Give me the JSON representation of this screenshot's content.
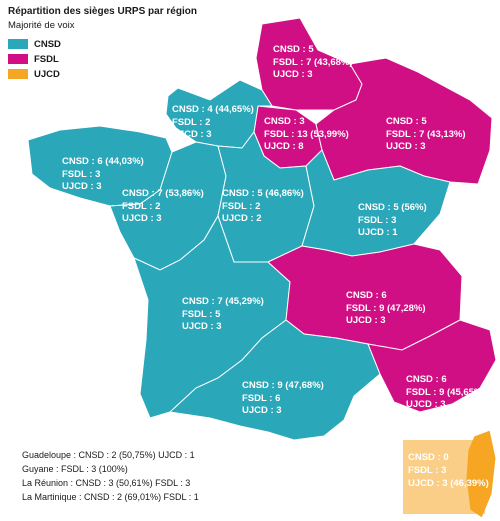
{
  "legend": {
    "title": "Répartition des sièges URPS par région",
    "subtitle": "Majorité de voix",
    "items": [
      {
        "label": "CNSD",
        "color": "#2aa7b8"
      },
      {
        "label": "FSDL",
        "color": "#d10f85"
      },
      {
        "label": "UJCD",
        "color": "#f5a623"
      }
    ]
  },
  "regions": [
    {
      "key": "hauts_de_france",
      "majority": "FSDL",
      "lines": [
        "CNSD : 5",
        "FSDL : 7 (43,68%)",
        "UJCD : 3"
      ]
    },
    {
      "key": "normandie",
      "majority": "CNSD",
      "lines": [
        "CNSD : 4 (44,65%)",
        "FSDL : 2",
        "UJCD : 3"
      ]
    },
    {
      "key": "ile_de_france",
      "majority": "FSDL",
      "lines": [
        "CNSD : 3",
        "FSDL : 13 (53,99%)",
        "UJCD : 8"
      ]
    },
    {
      "key": "grand_est",
      "majority": "FSDL",
      "lines": [
        "CNSD : 5",
        "FSDL : 7 (43,13%)",
        "UJCD : 3"
      ]
    },
    {
      "key": "bretagne",
      "majority": "CNSD",
      "lines": [
        "CNSD : 6 (44,03%)",
        "FSDL : 3",
        "UJCD : 3"
      ]
    },
    {
      "key": "pays_de_la_loire",
      "majority": "CNSD",
      "lines": [
        "CNSD : 7 (53,86%)",
        "FSDL : 2",
        "UJCD : 3"
      ]
    },
    {
      "key": "centre_val_de_loire",
      "majority": "CNSD",
      "lines": [
        "CNSD : 5 (46,86%)",
        "FSDL : 2",
        "UJCD : 2"
      ]
    },
    {
      "key": "bourgogne_franche_comte",
      "majority": "CNSD",
      "lines": [
        "CNSD : 5 (56%)",
        "FSDL : 3",
        "UJCD : 1"
      ]
    },
    {
      "key": "nouvelle_aquitaine",
      "majority": "CNSD",
      "lines": [
        "CNSD : 7 (45,29%)",
        "FSDL : 5",
        "UJCD : 3"
      ]
    },
    {
      "key": "auvergne_rhone_alpes",
      "majority": "FSDL",
      "lines": [
        "CNSD : 6",
        "FSDL : 9 (47,28%)",
        "UJCD : 3"
      ]
    },
    {
      "key": "occitanie",
      "majority": "CNSD",
      "lines": [
        "CNSD : 9 (47,68%)",
        "FSDL : 6",
        "UJCD : 3"
      ]
    },
    {
      "key": "paca",
      "majority": "FSDL",
      "lines": [
        "CNSD : 6",
        "FSDL : 9 (45,65%)",
        "UJCD : 3"
      ]
    },
    {
      "key": "corse",
      "majority": "UJCD",
      "lines": [
        "CNSD : 0",
        "FSDL : 3",
        "UJCD : 3 (46,39%)"
      ]
    }
  ],
  "overseas": [
    "Guadeloupe : CNSD : 2 (50,75%) UJCD : 1",
    "Guyane : FSDL : 3 (100%)",
    "La Réunion : CNSD : 3 (50,61%) FSDL : 3",
    "La Martinique : CNSD : 2 (69,01%) FSDL : 1"
  ]
}
